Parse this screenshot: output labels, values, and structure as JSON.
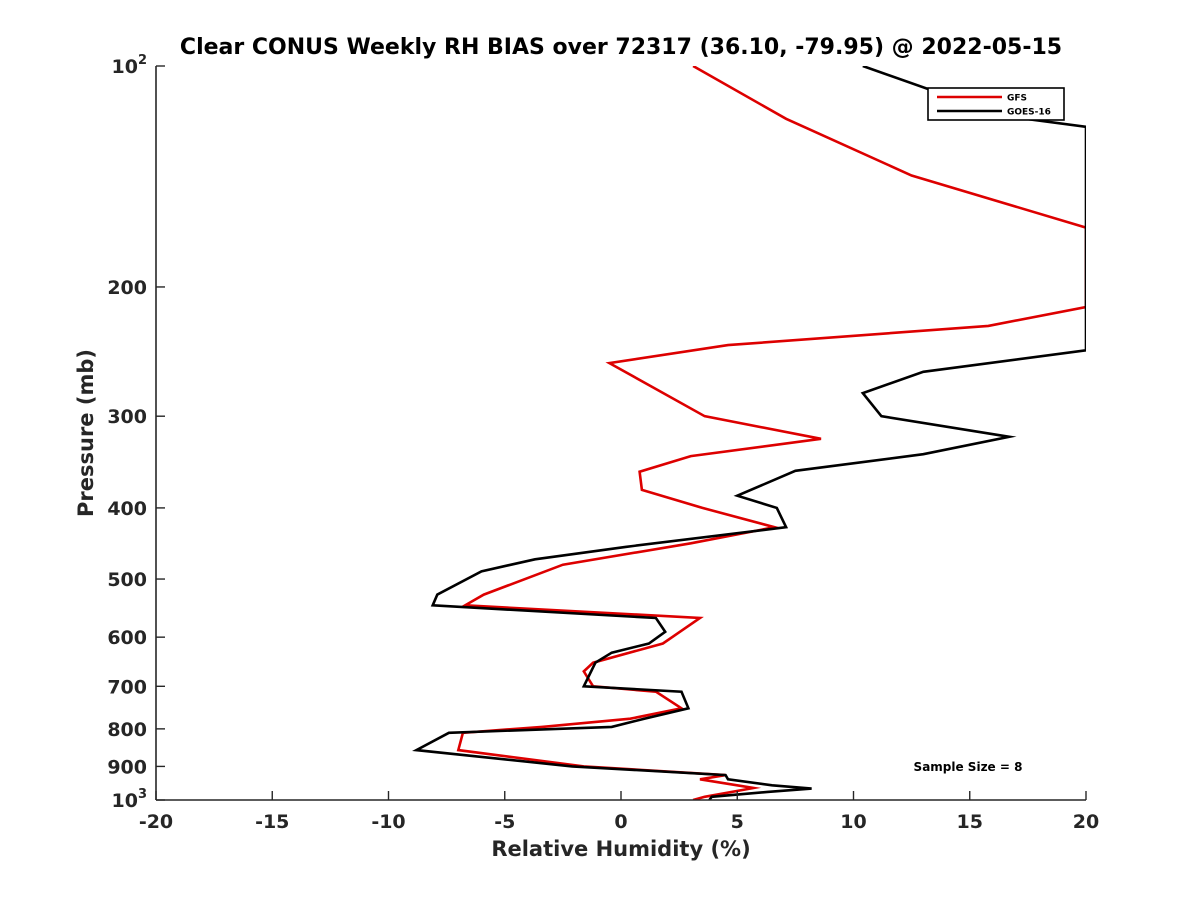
{
  "chart_data": {
    "type": "line",
    "title": "Clear CONUS Weekly RH BIAS over 72317 (36.10, -79.95) @ 2022-05-15",
    "xlabel": "Relative Humidity (%)",
    "ylabel": "Pressure (mb)",
    "xlim": [
      -20,
      20
    ],
    "ylim": [
      100,
      1000
    ],
    "y_scale": "log",
    "y_reversed": true,
    "grid": false,
    "legend_position": "top-right",
    "x_ticks": [
      -20,
      -15,
      -10,
      -5,
      0,
      5,
      10,
      15,
      20
    ],
    "x_tick_labels": [
      "-20",
      "-15",
      "-10",
      "-5",
      "0",
      "5",
      "10",
      "15",
      "20"
    ],
    "y_ticks": [
      100,
      200,
      300,
      400,
      500,
      600,
      700,
      800,
      900,
      1000
    ],
    "y_tick_labels": [
      {
        "base": "10",
        "sup": "2"
      },
      {
        "base": "200"
      },
      {
        "base": "300"
      },
      {
        "base": "400"
      },
      {
        "base": "500"
      },
      {
        "base": "600"
      },
      {
        "base": "700"
      },
      {
        "base": "800"
      },
      {
        "base": "900"
      },
      {
        "base": "10",
        "sup": "3"
      }
    ],
    "annotation": "Sample Size = 8",
    "series": [
      {
        "name": "GFS",
        "color": "#dd0000",
        "points": [
          [
            3.1,
            1000
          ],
          [
            3.6,
            990
          ],
          [
            5.7,
            963
          ],
          [
            3.4,
            937
          ],
          [
            4.5,
            925
          ],
          [
            -1.6,
            900
          ],
          [
            -7.0,
            855
          ],
          [
            -6.8,
            810
          ],
          [
            -3.4,
            795
          ],
          [
            0.4,
            775
          ],
          [
            2.6,
            750
          ],
          [
            1.5,
            712
          ],
          [
            -1.2,
            700
          ],
          [
            -1.6,
            668
          ],
          [
            -1.2,
            650
          ],
          [
            1.8,
            612
          ],
          [
            3.4,
            565
          ],
          [
            -6.7,
            543
          ],
          [
            -5.9,
            525
          ],
          [
            -2.5,
            478
          ],
          [
            3.0,
            447
          ],
          [
            6.6,
            425
          ],
          [
            3.5,
            400
          ],
          [
            0.9,
            378
          ],
          [
            0.8,
            357
          ],
          [
            3.0,
            340
          ],
          [
            8.6,
            322
          ],
          [
            3.6,
            300
          ],
          [
            -0.5,
            254
          ],
          [
            4.6,
            240
          ],
          [
            15.8,
            226
          ],
          [
            20,
            213
          ],
          [
            20,
            166
          ],
          [
            12.5,
            141
          ],
          [
            7.1,
            118
          ],
          [
            3.1,
            100
          ]
        ]
      },
      {
        "name": "GOES-16",
        "color": "#000000",
        "points": [
          [
            3.8,
            1000
          ],
          [
            3.9,
            990
          ],
          [
            6.3,
            975
          ],
          [
            8.2,
            965
          ],
          [
            6.5,
            955
          ],
          [
            4.6,
            937
          ],
          [
            4.5,
            925
          ],
          [
            -2.1,
            900
          ],
          [
            -8.8,
            855
          ],
          [
            -7.4,
            810
          ],
          [
            -0.4,
            795
          ],
          [
            1.0,
            775
          ],
          [
            2.9,
            750
          ],
          [
            2.6,
            712
          ],
          [
            -1.6,
            700
          ],
          [
            -1.1,
            650
          ],
          [
            -0.4,
            630
          ],
          [
            1.2,
            612
          ],
          [
            1.9,
            590
          ],
          [
            1.5,
            565
          ],
          [
            -8.1,
            543
          ],
          [
            -7.9,
            525
          ],
          [
            -6.0,
            488
          ],
          [
            -3.7,
            470
          ],
          [
            0.2,
            452
          ],
          [
            7.1,
            425
          ],
          [
            6.7,
            400
          ],
          [
            5.0,
            385
          ],
          [
            7.5,
            356
          ],
          [
            13.0,
            338
          ],
          [
            16.7,
            320
          ],
          [
            11.2,
            300
          ],
          [
            10.4,
            279
          ],
          [
            13.0,
            261
          ],
          [
            20,
            244
          ],
          [
            20,
            121
          ],
          [
            16.5,
            117
          ],
          [
            10.4,
            100
          ]
        ]
      }
    ]
  }
}
